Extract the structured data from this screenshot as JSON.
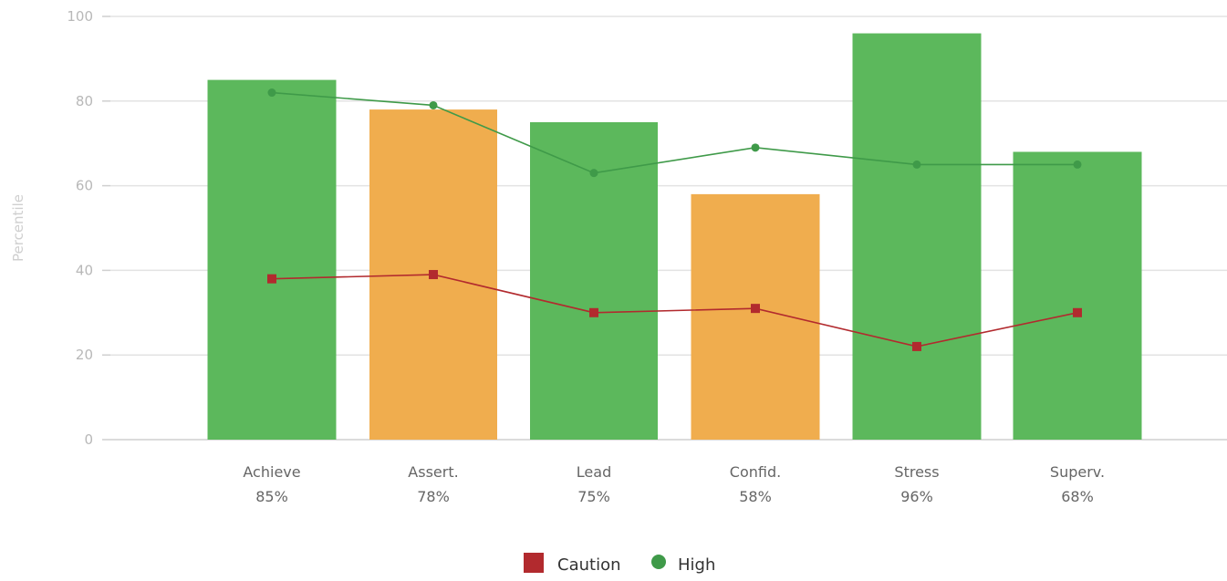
{
  "chart_data": {
    "type": "bar",
    "ylabel": "Percentile",
    "ylim": [
      0,
      100
    ],
    "yticks": [
      0,
      20,
      40,
      60,
      80,
      100
    ],
    "grid": true,
    "legend_position": "bottom-center",
    "categories": [
      "Achieve",
      "Assert.",
      "Lead",
      "Confid.",
      "Stress",
      "Superv."
    ],
    "bars": {
      "values": [
        85,
        78,
        75,
        58,
        96,
        68
      ],
      "labels": [
        "85%",
        "78%",
        "75%",
        "58%",
        "96%",
        "68%"
      ],
      "colors": [
        "#5cb85c",
        "#f0ad4e",
        "#5cb85c",
        "#f0ad4e",
        "#5cb85c",
        "#5cb85c"
      ]
    },
    "series": [
      {
        "name": "Caution",
        "type": "line",
        "marker": "square",
        "color": "#b22a2e",
        "values": [
          38,
          39,
          30,
          31,
          22,
          30
        ]
      },
      {
        "name": "High",
        "type": "line",
        "marker": "circle",
        "color": "#3f9a49",
        "values": [
          82,
          79,
          63,
          69,
          65,
          65
        ]
      }
    ]
  }
}
